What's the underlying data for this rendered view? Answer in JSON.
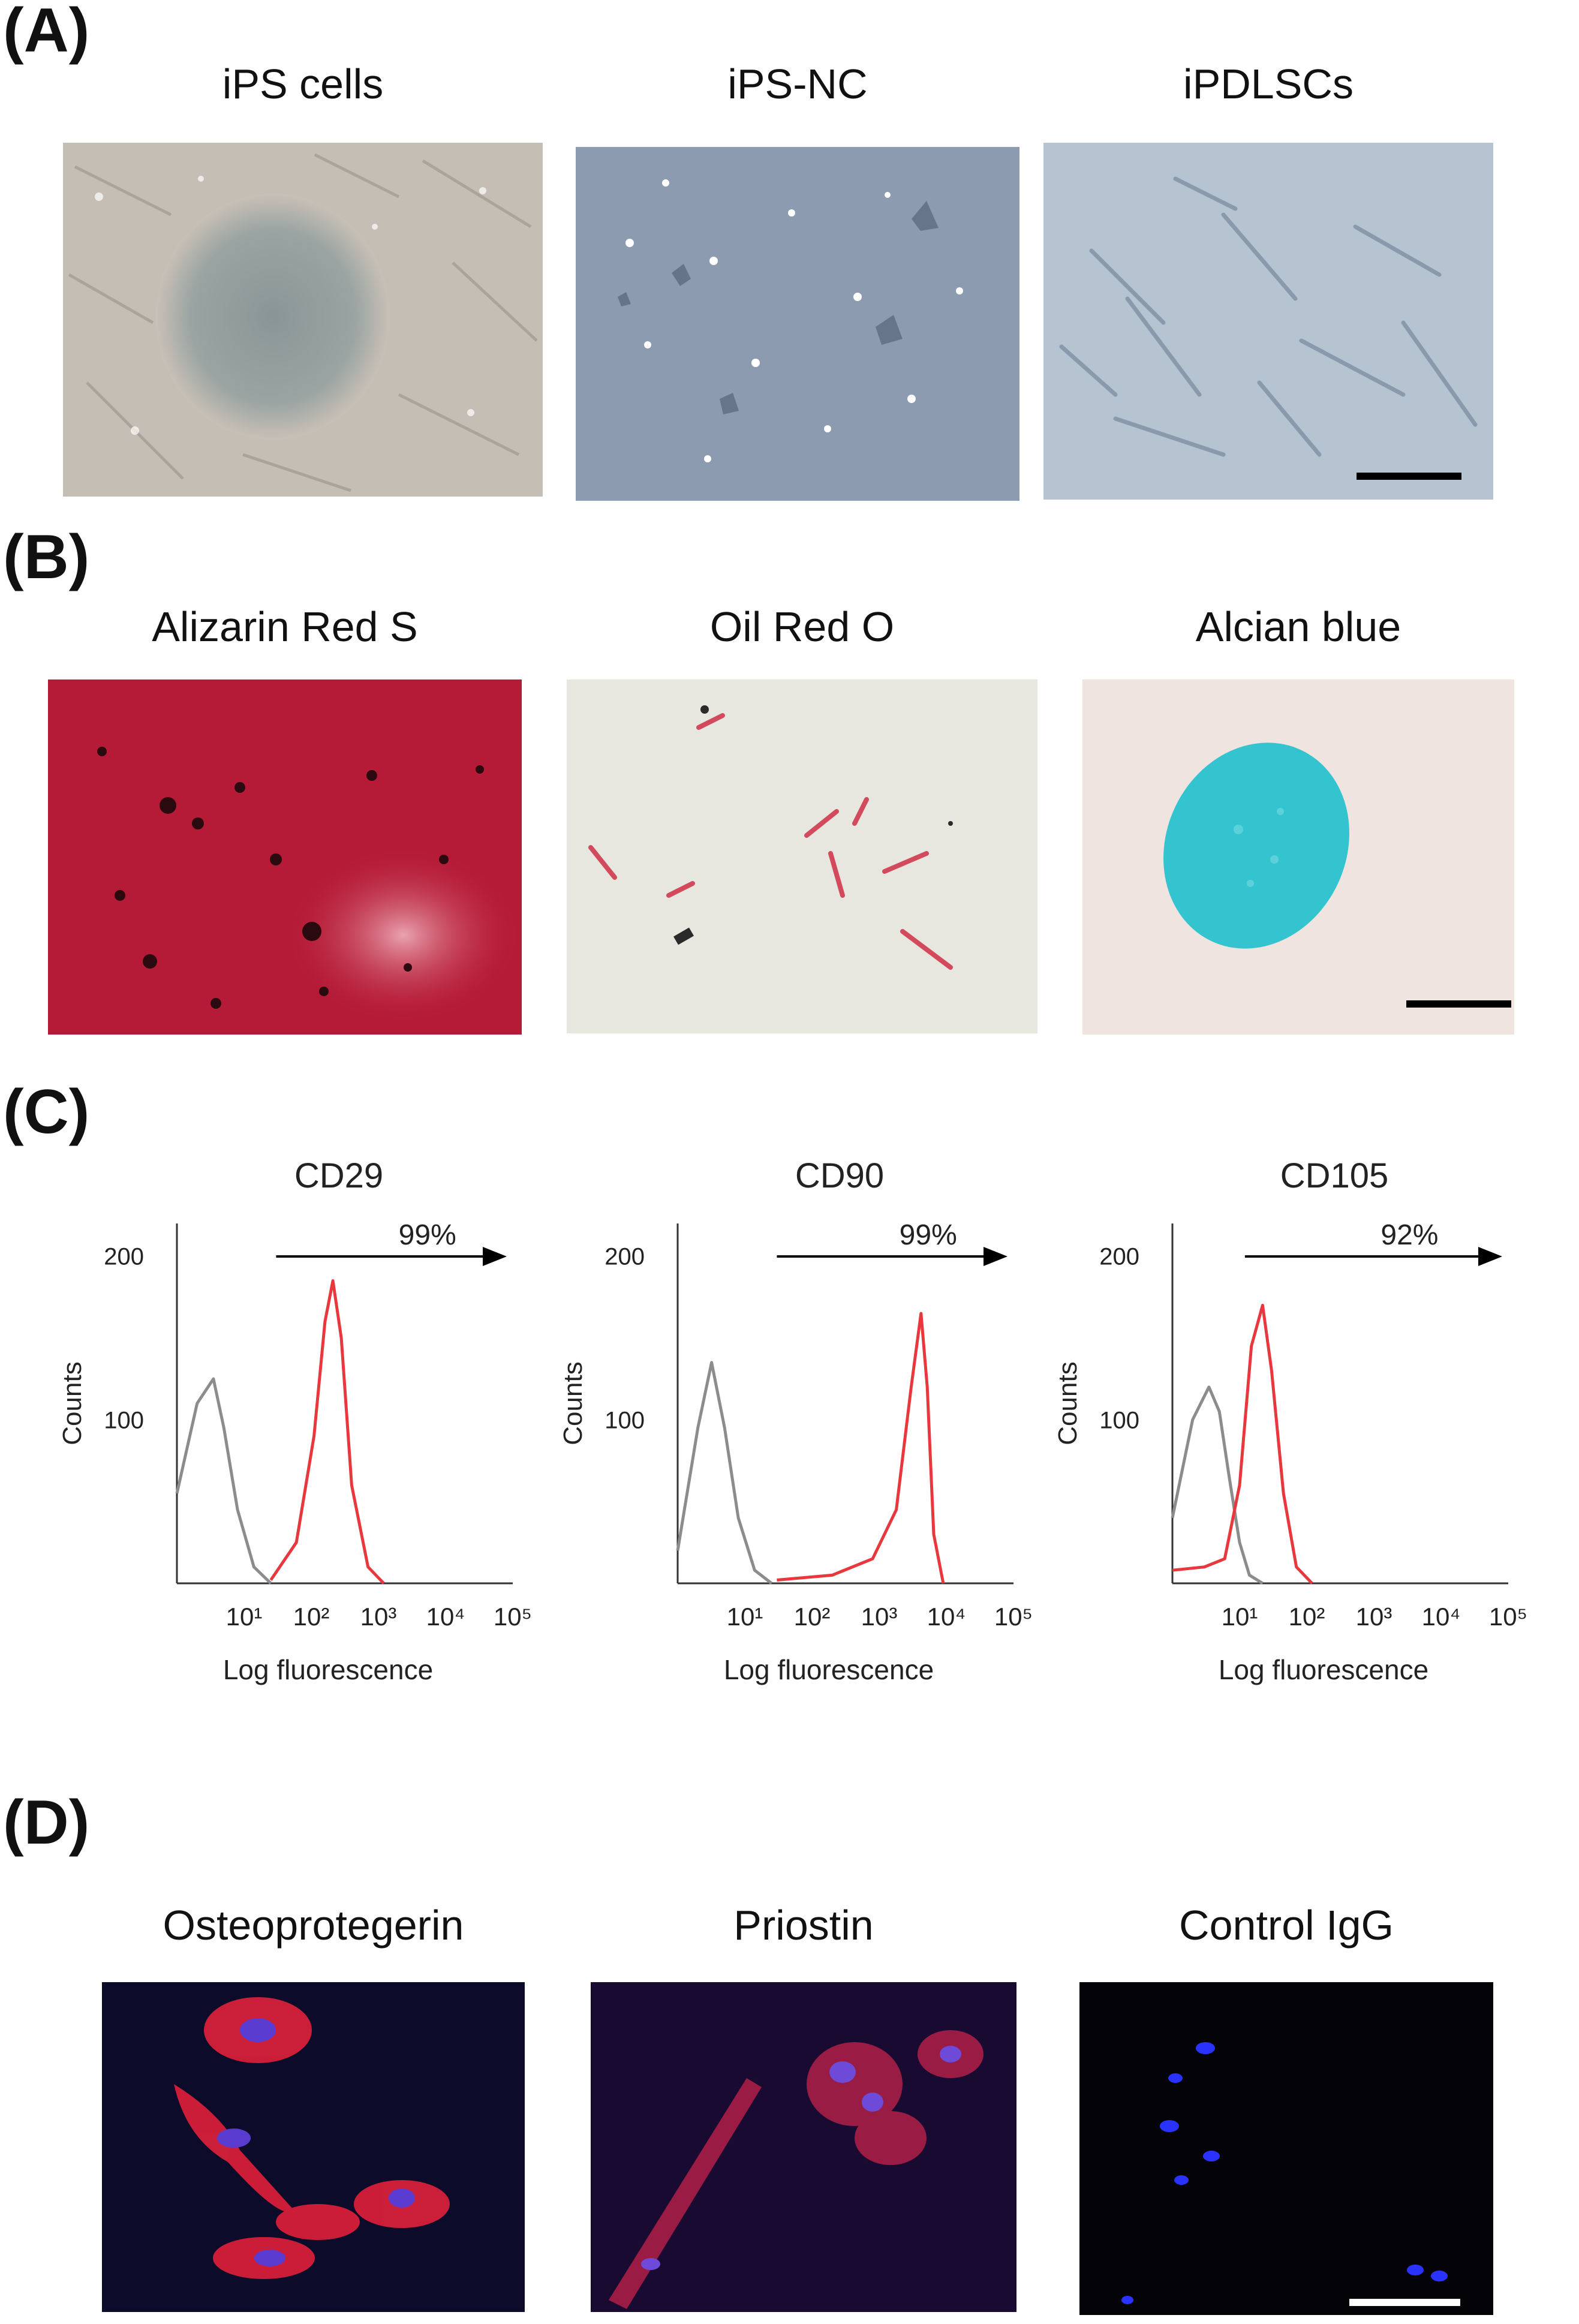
{
  "panels": {
    "A": {
      "label": "(A)",
      "images": [
        {
          "title": "iPS cells"
        },
        {
          "title": "iPS-NC"
        },
        {
          "title": "iPDLSCs"
        }
      ]
    },
    "B": {
      "label": "(B)",
      "images": [
        {
          "title": "Alizarin Red S"
        },
        {
          "title": "Oil Red O"
        },
        {
          "title": "Alcian blue"
        }
      ]
    },
    "C": {
      "label": "(C)"
    },
    "D": {
      "label": "(D)",
      "images": [
        {
          "title": "Osteoprotegerin"
        },
        {
          "title": "Priostin"
        },
        {
          "title": "Control IgG"
        }
      ]
    }
  },
  "chart_data": [
    {
      "type": "area",
      "title": "CD29",
      "xlabel": "Log fluorescence",
      "ylabel": "Counts",
      "x_scale": "log",
      "xlim": [
        1,
        100000
      ],
      "ylim": [
        0,
        220
      ],
      "x_tick_labels": [
        "10¹",
        "10²",
        "10³",
        "10⁴",
        "10⁵"
      ],
      "x_ticks": [
        10,
        100,
        1000,
        10000,
        100000
      ],
      "y_tick_labels": [
        "100",
        "200"
      ],
      "y_ticks": [
        100,
        200
      ],
      "gate_label": "99%",
      "gate_range": [
        30,
        100000
      ],
      "series": [
        {
          "color": "#8c8c8c",
          "x": [
            1,
            2,
            3.5,
            5,
            8,
            14,
            25
          ],
          "y": [
            55,
            110,
            125,
            95,
            45,
            10,
            0
          ]
        },
        {
          "color": "#e8383d",
          "x": [
            25,
            60,
            110,
            160,
            210,
            280,
            400,
            700,
            1200
          ],
          "y": [
            2,
            25,
            90,
            160,
            185,
            150,
            60,
            10,
            0
          ]
        }
      ]
    },
    {
      "type": "area",
      "title": "CD90",
      "xlabel": "Log fluorescence",
      "ylabel": "Counts",
      "x_scale": "log",
      "xlim": [
        1,
        100000
      ],
      "ylim": [
        0,
        220
      ],
      "x_tick_labels": [
        "10¹",
        "10²",
        "10³",
        "10⁴",
        "10⁵"
      ],
      "x_ticks": [
        10,
        100,
        1000,
        10000,
        100000
      ],
      "y_tick_labels": [
        "100",
        "200"
      ],
      "y_ticks": [
        100,
        200
      ],
      "gate_label": "99%",
      "gate_range": [
        30,
        100000
      ],
      "series": [
        {
          "color": "#8c8c8c",
          "x": [
            1,
            2,
            3.2,
            5,
            8,
            14,
            25
          ],
          "y": [
            20,
            95,
            135,
            95,
            40,
            8,
            0
          ]
        },
        {
          "color": "#e8383d",
          "x": [
            30,
            200,
            800,
            1800,
            3000,
            4200,
            5200,
            6500,
            9000
          ],
          "y": [
            2,
            5,
            15,
            45,
            120,
            165,
            120,
            30,
            0
          ]
        }
      ]
    },
    {
      "type": "area",
      "title": "CD105",
      "xlabel": "Log fluorescence",
      "ylabel": "Counts",
      "x_scale": "log",
      "xlim": [
        1,
        100000
      ],
      "ylim": [
        0,
        220
      ],
      "x_tick_labels": [
        "10¹",
        "10²",
        "10³",
        "10⁴",
        "10⁵"
      ],
      "x_ticks": [
        10,
        100,
        1000,
        10000,
        100000
      ],
      "y_tick_labels": [
        "100",
        "200"
      ],
      "y_ticks": [
        100,
        200
      ],
      "gate_label": "92%",
      "gate_range": [
        12,
        100000
      ],
      "series": [
        {
          "color": "#8c8c8c",
          "x": [
            1,
            2,
            3.5,
            5,
            7,
            10,
            14,
            22
          ],
          "y": [
            40,
            100,
            120,
            105,
            65,
            25,
            5,
            0
          ]
        },
        {
          "color": "#e8383d",
          "x": [
            1,
            3,
            6,
            10,
            15,
            22,
            30,
            45,
            70,
            120
          ],
          "y": [
            8,
            10,
            15,
            60,
            145,
            170,
            130,
            55,
            10,
            0
          ]
        }
      ]
    }
  ]
}
